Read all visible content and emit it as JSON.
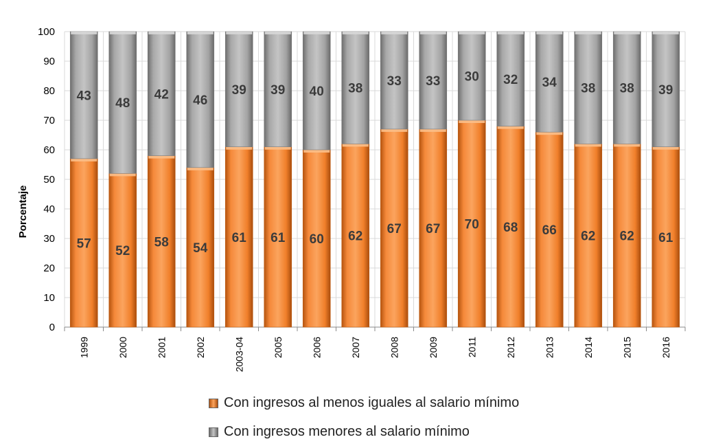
{
  "chart_data": {
    "type": "bar",
    "stacked": true,
    "categories": [
      "1999",
      "2000",
      "2001",
      "2002",
      "2003-04",
      "2005",
      "2006",
      "2007",
      "2008",
      "2009",
      "2011",
      "2012",
      "2013",
      "2014",
      "2015",
      "2016"
    ],
    "series": [
      {
        "name": "Con ingresos al menos iguales al salario mínimo",
        "color": "#f07f2a",
        "values": [
          57,
          52,
          58,
          54,
          61,
          61,
          60,
          62,
          67,
          67,
          70,
          68,
          66,
          62,
          62,
          61
        ]
      },
      {
        "name": "Con ingresos menores al salario mínimo",
        "color": "#a6a6a6",
        "values": [
          43,
          48,
          42,
          46,
          39,
          39,
          40,
          38,
          33,
          33,
          30,
          32,
          34,
          38,
          38,
          39
        ]
      }
    ],
    "ylabel": "Porcentaje",
    "ylim": [
      0,
      100
    ],
    "yticks": [
      0,
      10,
      20,
      30,
      40,
      50,
      60,
      70,
      80,
      90,
      100
    ],
    "grid": true,
    "legend_position": "bottom"
  }
}
